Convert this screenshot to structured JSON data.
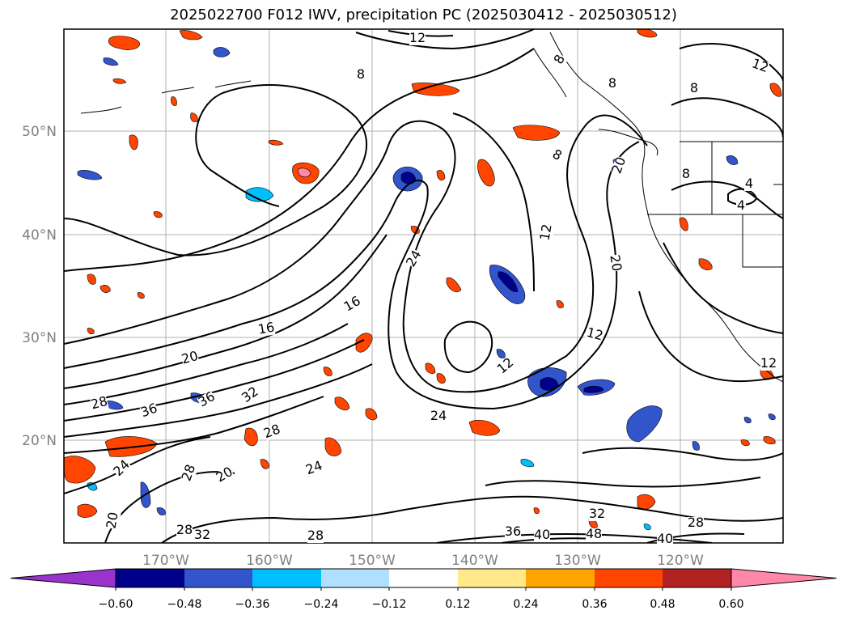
{
  "title": "2025022700 F012 IWV, precipitation PC (2025030412 - 2025030512)",
  "map": {
    "lon_labels": [
      "170°W",
      "160°W",
      "150°W",
      "140°W",
      "130°W",
      "120°W"
    ],
    "lat_labels": [
      "50°N",
      "40°N",
      "30°N",
      "20°N"
    ],
    "contour_labels": [
      {
        "text": "12",
        "rot": 0
      },
      {
        "text": "8",
        "rot": 0
      },
      {
        "text": "8",
        "rot": 0
      },
      {
        "text": "8",
        "rot": -60
      },
      {
        "text": "12",
        "rot": 20
      },
      {
        "text": "8",
        "rot": 0
      },
      {
        "text": "20",
        "rot": -70
      },
      {
        "text": "8",
        "rot": 0
      },
      {
        "text": "4",
        "rot": 0
      },
      {
        "text": "4",
        "rot": 0
      },
      {
        "text": "8",
        "rot": 30
      },
      {
        "text": "12",
        "rot": -80
      },
      {
        "text": "20",
        "rot": 80
      },
      {
        "text": "24",
        "rot": -60
      },
      {
        "text": "16",
        "rot": -30
      },
      {
        "text": "16",
        "rot": -10
      },
      {
        "text": "20",
        "rot": -15
      },
      {
        "text": "12",
        "rot": 15
      },
      {
        "text": "12",
        "rot": -40
      },
      {
        "text": "28",
        "rot": -15
      },
      {
        "text": "36",
        "rot": -20
      },
      {
        "text": "36",
        "rot": -30
      },
      {
        "text": "32",
        "rot": -35
      },
      {
        "text": "24",
        "rot": 0
      },
      {
        "text": "28",
        "rot": -20
      },
      {
        "text": "24",
        "rot": -20
      },
      {
        "text": "20",
        "rot": -30
      },
      {
        "text": "28",
        "rot": -70
      },
      {
        "text": "24",
        "rot": -45
      },
      {
        "text": "20",
        "rot": -80
      },
      {
        "text": "28",
        "rot": 0
      },
      {
        "text": "32",
        "rot": 0
      },
      {
        "text": "28",
        "rot": 0
      },
      {
        "text": "36",
        "rot": 0
      },
      {
        "text": "40",
        "rot": 0
      },
      {
        "text": "32",
        "rot": 0
      },
      {
        "text": "48",
        "rot": 0
      },
      {
        "text": "28",
        "rot": 0
      },
      {
        "text": "40",
        "rot": 0
      },
      {
        "text": "12",
        "rot": 0
      }
    ]
  },
  "colorbar": {
    "ticks": [
      "−0.60",
      "−0.48",
      "−0.36",
      "−0.24",
      "−0.12",
      "0.12",
      "0.24",
      "0.36",
      "0.48",
      "0.60"
    ],
    "colors": [
      "#9933cc",
      "#00008b",
      "#3355cc",
      "#00bfff",
      "#b0e0ff",
      "#ffffff",
      "#ffe98a",
      "#ffa500",
      "#ff4500",
      "#b22222",
      "#ff88aa"
    ]
  },
  "colors": {
    "blue_dark": "#00008b",
    "blue_mid": "#3355cc",
    "blue_cyan": "#00bfff",
    "blue_light": "#b0e0ff",
    "yellow": "#ffe98a",
    "orange": "#ffa500",
    "red_orange": "#ff4500",
    "dark_red": "#b22222",
    "pink": "#ff88aa"
  }
}
